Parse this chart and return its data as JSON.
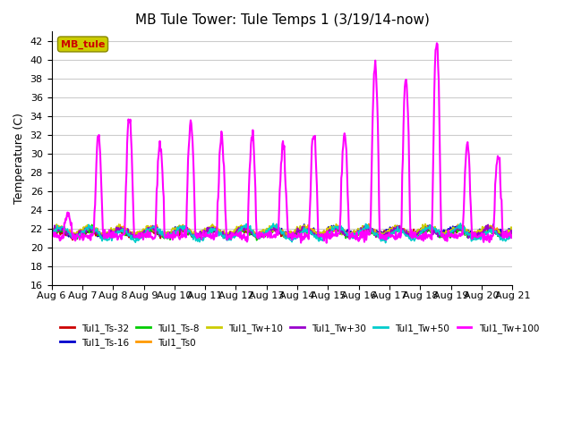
{
  "title": "MB Tule Tower: Tule Temps 1 (3/19/14-now)",
  "ylabel": "Temperature (C)",
  "ylim": [
    16,
    43
  ],
  "yticks": [
    16,
    18,
    20,
    22,
    24,
    26,
    28,
    30,
    32,
    34,
    36,
    38,
    40,
    42
  ],
  "xticklabels": [
    "Aug 6",
    "Aug 7",
    "Aug 8",
    "Aug 9",
    "Aug 10",
    "Aug 11",
    "Aug 12",
    "Aug 13",
    "Aug 14",
    "Aug 15",
    "Aug 16",
    "Aug 17",
    "Aug 18",
    "Aug 19",
    "Aug 20",
    "Aug 21"
  ],
  "n_days": 15,
  "background_color": "#ffffff",
  "grid_color": "#cccccc",
  "series_order": [
    "Tul1_Ts-32",
    "Tul1_Ts-16",
    "Tul1_Ts-8",
    "Tul1_Ts0",
    "Tul1_Tw+10",
    "Tul1_Tw+30",
    "Tul1_Tw+50",
    "Tul1_Tw+100"
  ],
  "series": {
    "Tul1_Ts-32": {
      "color": "#cc0000",
      "lw": 1.2
    },
    "Tul1_Ts-16": {
      "color": "#0000cc",
      "lw": 1.2
    },
    "Tul1_Ts-8": {
      "color": "#00cc00",
      "lw": 1.2
    },
    "Tul1_Ts0": {
      "color": "#ff9900",
      "lw": 1.2
    },
    "Tul1_Tw+10": {
      "color": "#cccc00",
      "lw": 1.2
    },
    "Tul1_Tw+30": {
      "color": "#9900cc",
      "lw": 1.2
    },
    "Tul1_Tw+50": {
      "color": "#00cccc",
      "lw": 1.2
    },
    "Tul1_Tw+100": {
      "color": "#ff00ff",
      "lw": 1.5
    }
  },
  "title_fontsize": 11,
  "tick_fontsize": 8,
  "label_fontsize": 9
}
